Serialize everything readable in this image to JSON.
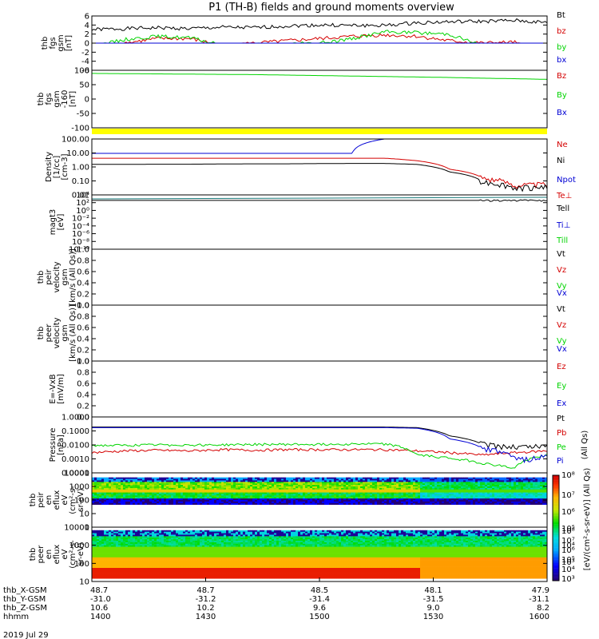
{
  "title": "P1 (TH-B) fields and ground moments overview",
  "date_label": "2019 Jul 29",
  "colors": {
    "black": "#000000",
    "red": "#d40000",
    "green": "#00d400",
    "blue": "#0000d4",
    "yellow": "#ffff00",
    "teal": "#1a7a7a"
  },
  "chart_data": [
    {
      "type": "line",
      "name": "fgs",
      "ylabel_lines": [
        "thb",
        "fgs",
        "gsm",
        "[nT]"
      ],
      "yticks": [
        "6",
        "4",
        "2",
        "0",
        "-2",
        "-4",
        "-6"
      ],
      "ylim": [
        -6,
        6
      ],
      "series": [
        {
          "name": "Bt",
          "color": "#000000",
          "values": [
            3.0,
            3.2,
            3.4,
            3.2,
            3.5,
            3.4,
            3.8,
            4.0,
            3.9,
            3.9,
            4.5,
            4.7,
            4.8,
            5.0,
            4.5
          ]
        },
        {
          "name": "bz",
          "color": "#d40000",
          "values": [
            -1.2,
            0.0,
            1.0,
            1.0,
            -0.5,
            0.0,
            0.5,
            1.0,
            1.5,
            1.8,
            1.5,
            0.5,
            0.0,
            0.2,
            -3.0
          ]
        },
        {
          "name": "by",
          "color": "#00d400",
          "values": [
            -0.8,
            0.8,
            1.5,
            1.2,
            -0.5,
            -0.4,
            -0.2,
            0.0,
            1.0,
            2.5,
            2.3,
            2.0,
            -0.5,
            -1.5,
            -2.0
          ]
        },
        {
          "name": "bx",
          "color": "#0000d4",
          "values": [
            -2.0,
            -2.3,
            -2.5,
            -2.3,
            -1.7,
            -1.8,
            -1.6,
            -1.5,
            -1.2,
            -0.5,
            -0.8,
            -2.0,
            -3.0,
            -2.5,
            -2.0
          ]
        }
      ]
    },
    {
      "type": "line",
      "name": "fgs-dsl",
      "ylabel_lines": [
        "thb",
        "fgs",
        "gsm",
        "-160",
        "[nT]"
      ],
      "yticks": [
        "100",
        "50",
        "0",
        "-50",
        "-100"
      ],
      "ylim": [
        -130,
        110
      ],
      "series": [
        {
          "name": "Bz",
          "color": "#d40000",
          "values": []
        },
        {
          "name": "By",
          "color": "#00d400",
          "values": [
            97,
            96,
            95,
            94,
            93,
            92,
            90,
            88,
            86,
            84,
            82,
            80,
            77,
            75,
            72
          ]
        },
        {
          "name": "Bx",
          "color": "#0000d4",
          "values": []
        }
      ]
    },
    {
      "type": "line",
      "name": "density",
      "scale": "log",
      "ylabel_lines": [
        "Density",
        "[1/cc]",
        "[cm-3]"
      ],
      "yticks": [
        "100.00",
        "10.00",
        "1.00",
        "0.10",
        "0.01"
      ],
      "ylim": [
        0.008,
        300
      ],
      "series": [
        {
          "name": "Ne",
          "color": "#d40000",
          "values": [
            8,
            8,
            8,
            8,
            8,
            8,
            8,
            8,
            8,
            8,
            5,
            1.0,
            0.2,
            0.05,
            0.06
          ]
        },
        {
          "name": "Ni",
          "color": "#000000",
          "values": [
            2.5,
            2.5,
            2.6,
            2.6,
            2.7,
            2.8,
            2.8,
            2.9,
            3.0,
            3.0,
            2.5,
            0.6,
            0.1,
            0.03,
            0.04
          ]
        },
        {
          "name": "Npot",
          "color": "#0000d4",
          "values": [
            20,
            20,
            20,
            20,
            20,
            20,
            20,
            20,
            20,
            300,
            null,
            null,
            null,
            null,
            null
          ]
        },
        {
          "name": "Te⊥",
          "color": "#d40000",
          "values": []
        }
      ]
    },
    {
      "type": "line",
      "name": "temperature",
      "scale": "log",
      "ylabel_lines": [
        "magt3",
        "[eV]"
      ],
      "yticks": [
        "10⁴",
        "10²",
        "10⁰",
        "10⁻²",
        "10⁻⁴",
        "10⁻⁶",
        "10⁻⁸",
        "10⁻¹⁰"
      ],
      "ylim": [
        1e-10,
        100000.0
      ],
      "series": [
        {
          "name": "Tell",
          "color": "#000000",
          "values": [
            3000,
            3000,
            3000,
            3000,
            3000,
            3000,
            3000,
            3000,
            3000,
            3000,
            3000,
            3000,
            3000,
            3000,
            3000
          ]
        },
        {
          "name": "Ti⊥",
          "color": "#0000d4",
          "values": []
        },
        {
          "name": "Till",
          "color": "#00d400",
          "values": []
        }
      ]
    },
    {
      "type": "line",
      "name": "peir-velocity",
      "ylabel_lines": [
        "thb",
        "peir",
        "velocity",
        "gsm",
        "[km/s (All Qs)]"
      ],
      "yticks": [
        "1.0",
        "0.8",
        "0.6",
        "0.4",
        "0.2",
        "0.0"
      ],
      "ylim": [
        0,
        1
      ],
      "series": [
        {
          "name": "Vt",
          "color": "#000000",
          "values": []
        },
        {
          "name": "Vz",
          "color": "#d40000",
          "values": []
        },
        {
          "name": "Vy",
          "color": "#00d400",
          "values": []
        },
        {
          "name": "Vx",
          "color": "#0000d4",
          "values": []
        }
      ]
    },
    {
      "type": "line",
      "name": "peer-velocity",
      "ylabel_lines": [
        "thb",
        "peer",
        "velocity",
        "gsm",
        "[km/s (All Qs)]"
      ],
      "yticks": [
        "1.0",
        "0.8",
        "0.6",
        "0.4",
        "0.2",
        "0.0"
      ],
      "ylim": [
        0,
        1
      ],
      "series": [
        {
          "name": "Vt",
          "color": "#000000",
          "values": []
        },
        {
          "name": "Vz",
          "color": "#d40000",
          "values": []
        },
        {
          "name": "Vy",
          "color": "#00d400",
          "values": []
        },
        {
          "name": "Vx",
          "color": "#0000d4",
          "values": []
        }
      ]
    },
    {
      "type": "line",
      "name": "efield",
      "ylabel_lines": [
        "E=-VxB",
        "[mV/m]"
      ],
      "yticks": [
        "1.0",
        "0.8",
        "0.6",
        "0.4",
        "0.2",
        "0.0"
      ],
      "ylim": [
        0,
        1
      ],
      "series": [
        {
          "name": "Ez",
          "color": "#d40000",
          "values": []
        },
        {
          "name": "Ey",
          "color": "#00d400",
          "values": []
        },
        {
          "name": "Ex",
          "color": "#0000d4",
          "values": []
        }
      ]
    },
    {
      "type": "line",
      "name": "pressure",
      "scale": "log",
      "ylabel_lines": [
        "Pressure",
        "[nPa]"
      ],
      "right_label": "(All Qs)",
      "yticks": [
        "1.0000",
        "0.1000",
        "0.0100",
        "0.0010",
        "0.0001"
      ],
      "ylim": [
        0.0001,
        1.2
      ],
      "series": [
        {
          "name": "Pt",
          "color": "#000000",
          "values": [
            0.22,
            0.22,
            0.22,
            0.22,
            0.22,
            0.22,
            0.22,
            0.22,
            0.22,
            0.22,
            0.2,
            0.05,
            0.012,
            0.008,
            0.009
          ]
        },
        {
          "name": "Pb",
          "color": "#d40000",
          "values": [
            0.003,
            0.004,
            0.0045,
            0.004,
            0.005,
            0.0045,
            0.005,
            0.005,
            0.005,
            0.005,
            0.004,
            0.003,
            0.002,
            0.003,
            0.004
          ]
        },
        {
          "name": "Pe",
          "color": "#00d400",
          "values": [
            0.01,
            0.01,
            0.011,
            0.011,
            0.011,
            0.012,
            0.012,
            0.012,
            0.013,
            0.013,
            0.002,
            0.0012,
            0.0005,
            0.0002,
            0.002
          ]
        },
        {
          "name": "Pi",
          "color": "#0000d4",
          "values": [
            0.2,
            0.2,
            0.2,
            0.2,
            0.2,
            0.2,
            0.2,
            0.2,
            0.2,
            0.2,
            0.18,
            0.03,
            0.006,
            0.001,
            0.0015
          ]
        }
      ]
    },
    {
      "type": "heatmap",
      "name": "peir-spectrogram",
      "ylabel_lines": [
        "thb",
        "peir",
        "en",
        "eflux",
        "eV",
        "(cm²-s-",
        "sr-eV)"
      ],
      "yticks": [
        "10000",
        "1000",
        "100",
        "10",
        "1"
      ],
      "ylim": [
        1,
        10000
      ],
      "colorbar_ticks": [
        "10⁸",
        "10⁷",
        "10⁶",
        "10⁵",
        "10⁴",
        "10³"
      ]
    },
    {
      "type": "heatmap",
      "name": "peer-spectrogram",
      "ylabel_lines": [
        "thb",
        "peer",
        "en",
        "eflux",
        "eV",
        "(cm²-s-",
        "sr-eV)"
      ],
      "yticks": [
        "10000",
        "1000",
        "100",
        "10"
      ],
      "ylim": [
        4,
        15000
      ],
      "colorbar_ticks": [
        "10⁸",
        "10⁷",
        "10⁶",
        "10⁵",
        "10⁴",
        "10³"
      ]
    }
  ],
  "colorbar_label": "[eV/(cm²-s-sr-eV)] (All Qs)",
  "x_axis": {
    "row_labels": [
      "thb_X-GSM",
      "thb_Y-GSM",
      "thb_Z-GSM",
      "hhmm"
    ],
    "rows": [
      [
        "48.7",
        "48.7",
        "48.5",
        "48.1",
        "47.9"
      ],
      [
        "-31.0",
        "-31.2",
        "-31.4",
        "-31.5",
        "-31.1"
      ],
      [
        "10.6",
        "10.2",
        "9.6",
        "9.0",
        "8.2"
      ],
      [
        "1400",
        "1430",
        "1500",
        "1530",
        "1600"
      ]
    ]
  }
}
